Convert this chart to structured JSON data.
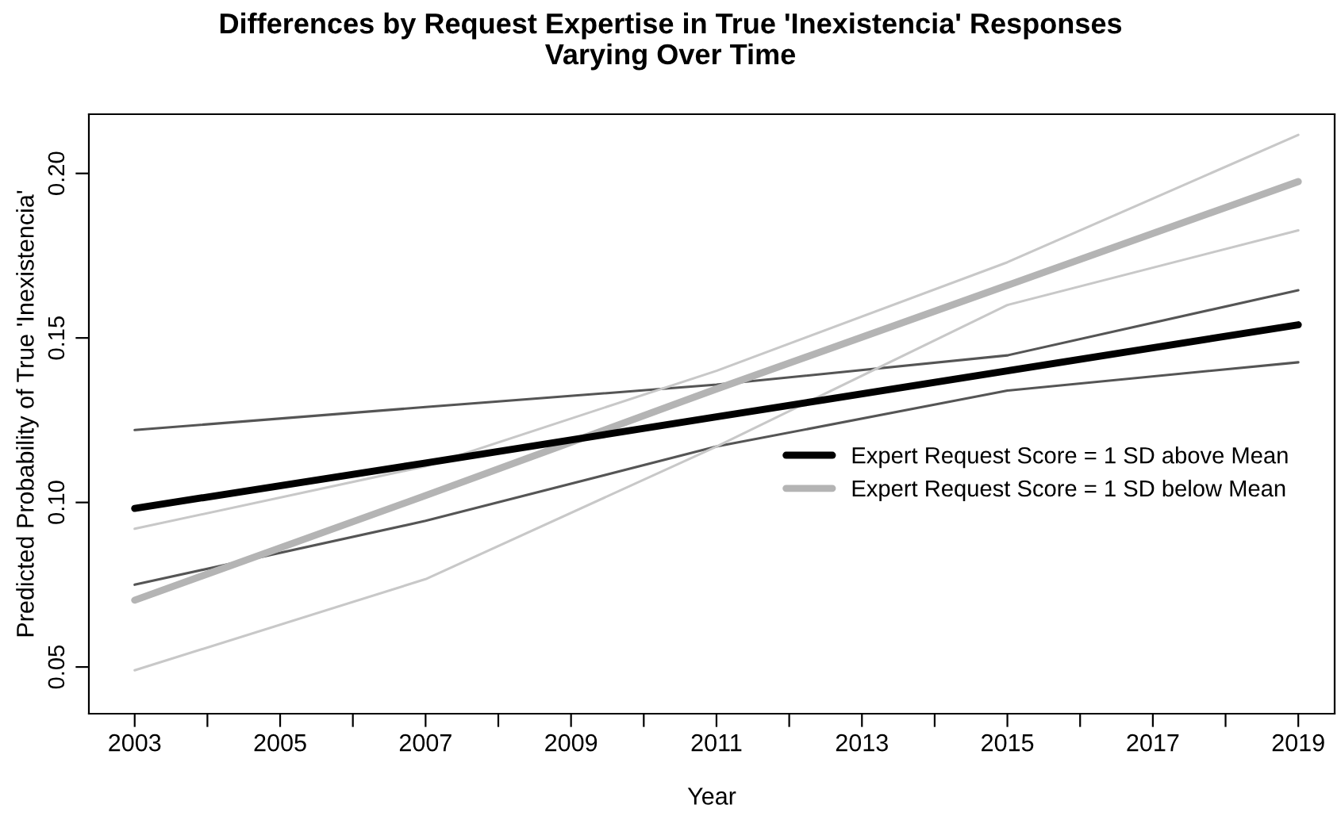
{
  "chart_data": {
    "type": "line",
    "title": "Differences by Request Expertise in True 'Inexistencia' Responses\nVarying Over Time",
    "xlabel": "Year",
    "ylabel": "Predicted Probability of True 'Inexistencia'",
    "x": [
      2003,
      2007,
      2011,
      2015,
      2019
    ],
    "series": [
      {
        "color": "#555555",
        "values": [
          0.122,
          0.129,
          0.1358,
          0.1447,
          0.1645
        ]
      },
      {
        "color": "#555555",
        "values": [
          0.075,
          0.0944,
          0.117,
          0.134,
          0.1426
        ]
      },
      {
        "color": "#c8c8c8",
        "values": [
          0.092,
          0.111,
          0.14,
          0.173,
          0.2117
        ]
      },
      {
        "color": "#c8c8c8",
        "values": [
          0.049,
          0.0767,
          0.117,
          0.16,
          0.1827
        ]
      },
      {
        "name": "Expert Request Score = 1 SD below Mean",
        "color": "#b4b4b4",
        "values": [
          0.0703,
          0.1021,
          0.1345,
          0.166,
          0.1975
        ]
      },
      {
        "name": "Expert Request Score = 1 SD above Mean",
        "color": "#000000",
        "values": [
          0.0982,
          0.112,
          0.126,
          0.14,
          0.154
        ]
      }
    ],
    "xlim": [
      2002.37,
      2019.5
    ],
    "ylim": [
      0.0358,
      0.218
    ],
    "xticks": [
      2003,
      {
        "value": 2004,
        "label": null
      },
      2005,
      {
        "value": 2006,
        "label": null
      },
      2007,
      {
        "value": 2008,
        "label": null
      },
      2009,
      {
        "value": 2010,
        "label": null
      },
      2011,
      {
        "value": 2012,
        "label": null
      },
      2013,
      {
        "value": 2014,
        "label": null
      },
      2015,
      {
        "value": 2016,
        "label": null
      },
      2017,
      {
        "value": 2018,
        "label": null
      },
      2019
    ],
    "yticks": [
      {
        "value": 0.05,
        "label": "0.05"
      },
      {
        "value": 0.1,
        "label": "0.10"
      },
      {
        "value": 0.15,
        "label": "0.15"
      },
      {
        "value": 0.2,
        "label": "0.20"
      }
    ],
    "grid": false,
    "legend": "right",
    "marker": "none",
    "line_style": "solid"
  }
}
